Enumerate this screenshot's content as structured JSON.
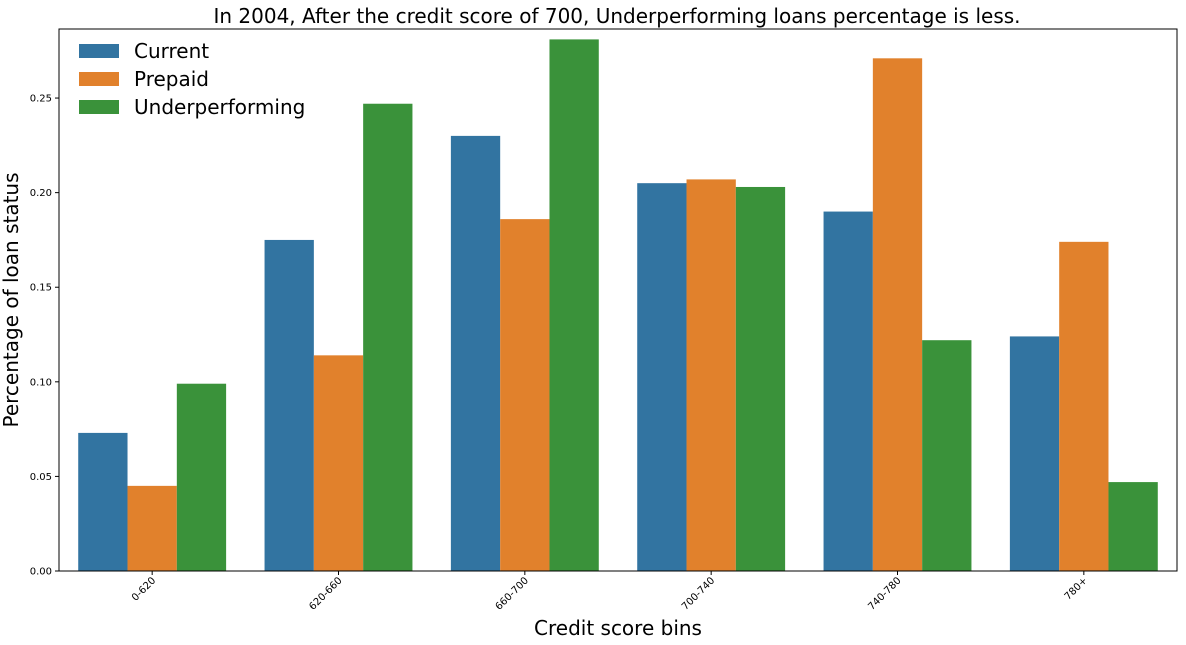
{
  "chart_data": {
    "type": "bar",
    "title": "In 2004, After the credit score of 700, Underperforming loans percentage is less.",
    "xlabel": "Credit score bins",
    "ylabel": "Percentage of loan status",
    "categories": [
      "0-620",
      "620-660",
      "660-700",
      "700-740",
      "740-780",
      "780+"
    ],
    "series": [
      {
        "name": "Current",
        "color": "#3274a1",
        "values": [
          0.073,
          0.175,
          0.23,
          0.205,
          0.19,
          0.124
        ]
      },
      {
        "name": "Prepaid",
        "color": "#e1812c",
        "values": [
          0.045,
          0.114,
          0.186,
          0.207,
          0.271,
          0.174
        ]
      },
      {
        "name": "Underperforming",
        "color": "#3a923a",
        "values": [
          0.099,
          0.247,
          0.281,
          0.203,
          0.122,
          0.047
        ]
      }
    ],
    "ylim": [
      0,
      0.2865
    ],
    "yticks": [
      "0.00",
      "0.05",
      "0.10",
      "0.15",
      "0.20",
      "0.25"
    ],
    "grid": false,
    "legend_position": "top-left"
  }
}
